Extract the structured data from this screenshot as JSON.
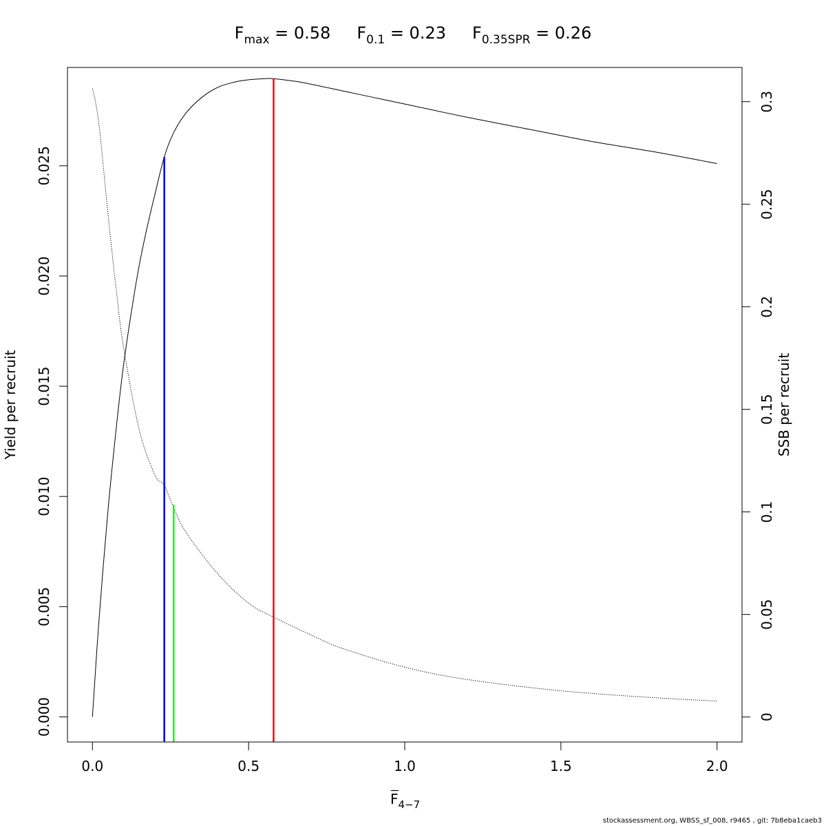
{
  "chart_data": {
    "type": "line",
    "title": {
      "fmax_symbol": "F",
      "fmax_sub": "max",
      "fmax_value": " = 0.58",
      "f01_symbol": "F",
      "f01_sub": "0.1",
      "f01_value": " = 0.23",
      "fspr_symbol": "F",
      "fspr_sub": "0.35SPR",
      "fspr_value": " = 0.26"
    },
    "xlabel_main": "F",
    "xlabel_sub": "4−7",
    "ylabel_left": "Yield per recruit",
    "ylabel_right": "SSB per recruit",
    "xlim": [
      -0.08,
      2.08
    ],
    "ylim_left": [
      -0.00114,
      0.02946
    ],
    "ylim_right": [
      -0.0122,
      0.3167
    ],
    "x_ticks": [
      0.0,
      0.5,
      1.0,
      1.5,
      2.0
    ],
    "x_tick_labels": [
      "0.0",
      "0.5",
      "1.0",
      "1.5",
      "2.0"
    ],
    "y_left_ticks": [
      0.0,
      0.005,
      0.01,
      0.015,
      0.02,
      0.025
    ],
    "y_left_tick_labels": [
      "0.000",
      "0.005",
      "0.010",
      "0.015",
      "0.020",
      "0.025"
    ],
    "y_right_ticks": [
      0,
      0.05,
      0.1,
      0.15,
      0.2,
      0.25,
      0.3
    ],
    "y_right_tick_labels": [
      "0",
      "0.05",
      "0.1",
      "0.15",
      "0.2",
      "0.25",
      "0.3"
    ],
    "series": [
      {
        "name": "Yield per recruit",
        "axis": "left",
        "style": "solid",
        "color": "#000000",
        "x": [
          0,
          0.02,
          0.05,
          0.08,
          0.1,
          0.125,
          0.15,
          0.175,
          0.2,
          0.23,
          0.26,
          0.3,
          0.35,
          0.4,
          0.45,
          0.5,
          0.55,
          0.58,
          0.65,
          0.7,
          0.8,
          0.9,
          1.0,
          1.2,
          1.4,
          1.6,
          1.8,
          2.0
        ],
        "y": [
          0,
          0.0042,
          0.0094,
          0.0136,
          0.016,
          0.0184,
          0.0205,
          0.0222,
          0.0237,
          0.0254,
          0.0265,
          0.0274,
          0.0281,
          0.02855,
          0.02878,
          0.0289,
          0.02895,
          0.02895,
          0.02883,
          0.0287,
          0.0284,
          0.0281,
          0.0278,
          0.0272,
          0.02665,
          0.0261,
          0.02563,
          0.0251
        ]
      },
      {
        "name": "SSB per recruit",
        "axis": "right",
        "style": "dotted",
        "color": "#000000",
        "x": [
          0,
          0.02,
          0.05,
          0.075,
          0.1,
          0.15,
          0.2,
          0.23,
          0.26,
          0.3,
          0.4,
          0.5,
          0.58,
          0.7,
          0.8,
          1.0,
          1.2,
          1.5,
          1.8,
          2.0
        ],
        "y": [
          0.3065,
          0.29,
          0.245,
          0.21,
          0.18,
          0.14,
          0.118,
          0.113,
          0.102,
          0.09,
          0.07,
          0.0555,
          0.0487,
          0.04,
          0.0335,
          0.0243,
          0.0183,
          0.0128,
          0.0094,
          0.0078
        ]
      }
    ],
    "reference_lines": [
      {
        "name": "F0.1",
        "x": 0.23,
        "y_top": 0.0254,
        "axis": "left",
        "color": "#0000FF"
      },
      {
        "name": "F0.35SPR",
        "x": 0.26,
        "y_top": 0.1035,
        "axis": "right",
        "color": "#00FF00"
      },
      {
        "name": "Fmax",
        "x": 0.58,
        "y_top": 0.02895,
        "axis": "left",
        "color": "#FF0000"
      }
    ]
  },
  "footer": "stockassessment.org, WBSS_sf_008, r9465 , git: 7b8eba1caeb3"
}
